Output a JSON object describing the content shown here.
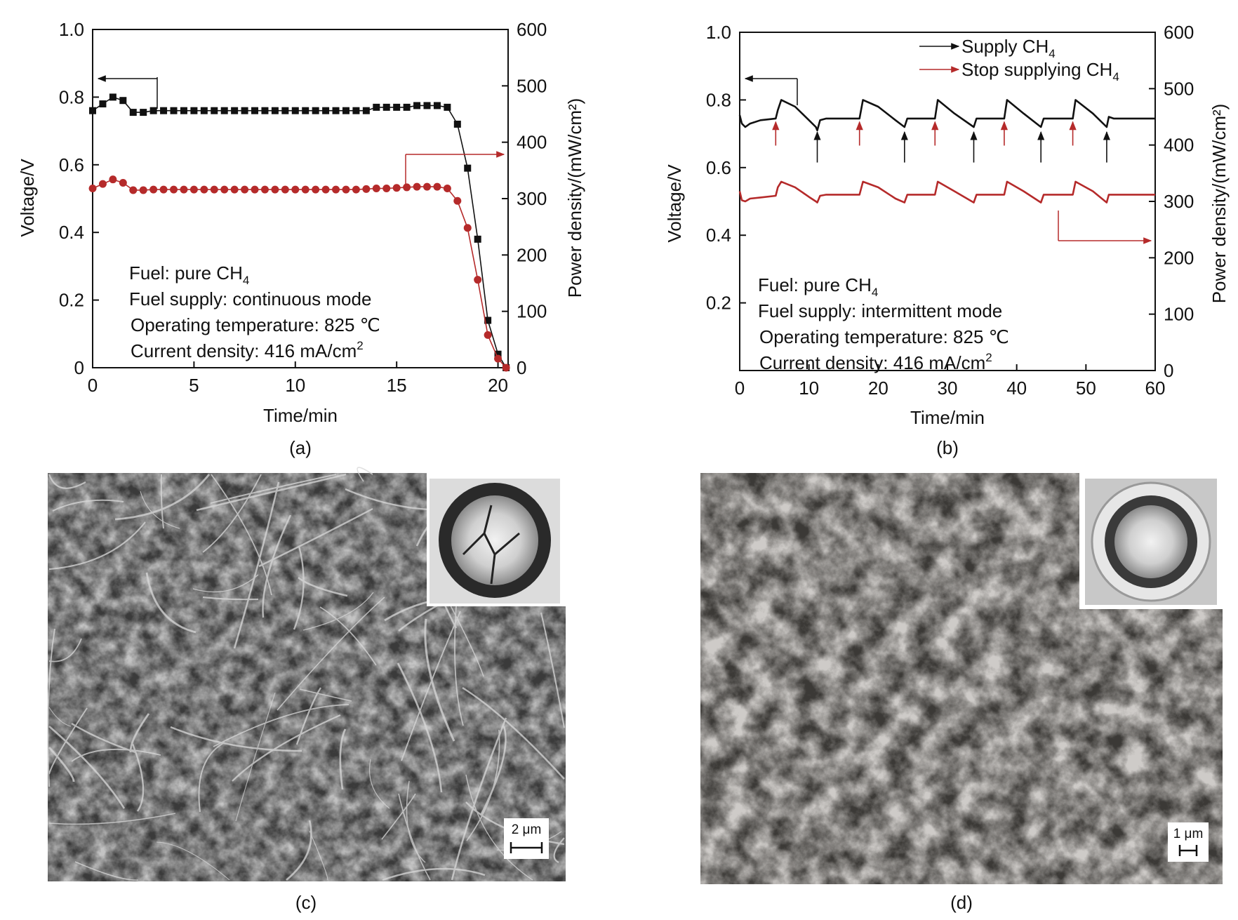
{
  "colors": {
    "voltage": "#111111",
    "power": "#b52a2a",
    "axis": "#111111"
  },
  "panel_labels": [
    "(a)",
    "(b)",
    "(c)",
    "(d)"
  ],
  "chart_data": [
    {
      "type": "line",
      "panel": "a",
      "xlabel": "Time/min",
      "ylabel": "Voltage/V",
      "y2label": "Power density/(mW/cm²)",
      "xlim": [
        0,
        20.5
      ],
      "ylim": [
        0,
        1.0
      ],
      "y2lim": [
        0,
        600
      ],
      "xticks": [
        "0",
        "5",
        "10",
        "15",
        "20"
      ],
      "xtick_values": [
        0,
        5,
        10,
        15,
        20
      ],
      "yticks": [
        "0",
        "0.2",
        "0.4",
        "0.6",
        "0.8",
        "1.0"
      ],
      "ytick_values": [
        0,
        0.2,
        0.4,
        0.6,
        0.8,
        1.0
      ],
      "y2ticks": [
        "0",
        "100",
        "200",
        "300",
        "400",
        "500",
        "600"
      ],
      "y2tick_values": [
        0,
        100,
        200,
        300,
        400,
        500,
        600
      ],
      "annotation_lines": [
        {
          "prefix": "Fuel: pure CH",
          "sub": "4",
          "sup": "",
          "suffix": ""
        },
        {
          "prefix": "Fuel supply: continuous mode",
          "sub": "",
          "sup": "",
          "suffix": ""
        },
        {
          "prefix": "Operating temperature: 825 ℃",
          "sub": "",
          "sup": "",
          "suffix": ""
        },
        {
          "prefix": "Current density: 416 mA/cm",
          "sub": "",
          "sup": "2",
          "suffix": ""
        }
      ],
      "series": [
        {
          "name": "Voltage",
          "axis": "left",
          "marker": "square",
          "x": [
            0,
            0.5,
            1.0,
            1.5,
            2.0,
            2.5,
            3.0,
            3.5,
            4.0,
            4.5,
            5.0,
            5.5,
            6.0,
            6.5,
            7.0,
            7.5,
            8.0,
            8.5,
            9.0,
            9.5,
            10.0,
            10.5,
            11.0,
            11.5,
            12.0,
            12.5,
            13.0,
            13.5,
            14.0,
            14.5,
            15.0,
            15.5,
            16.0,
            16.5,
            17.0,
            17.5,
            18.0,
            18.5,
            19.0,
            19.5,
            20.0,
            20.4
          ],
          "values": [
            0.76,
            0.78,
            0.8,
            0.79,
            0.755,
            0.755,
            0.76,
            0.76,
            0.76,
            0.76,
            0.76,
            0.76,
            0.76,
            0.76,
            0.76,
            0.76,
            0.76,
            0.76,
            0.76,
            0.76,
            0.76,
            0.76,
            0.76,
            0.76,
            0.76,
            0.76,
            0.76,
            0.76,
            0.77,
            0.77,
            0.77,
            0.77,
            0.775,
            0.775,
            0.775,
            0.77,
            0.72,
            0.59,
            0.38,
            0.14,
            0.04,
            0.0
          ]
        },
        {
          "name": "Power density",
          "axis": "right",
          "marker": "circle",
          "x": [
            0,
            0.5,
            1.0,
            1.5,
            2.0,
            2.5,
            3.0,
            3.5,
            4.0,
            4.5,
            5.0,
            5.5,
            6.0,
            6.5,
            7.0,
            7.5,
            8.0,
            8.5,
            9.0,
            9.5,
            10.0,
            10.5,
            11.0,
            11.5,
            12.0,
            12.5,
            13.0,
            13.5,
            14.0,
            14.5,
            15.0,
            15.5,
            16.0,
            16.5,
            17.0,
            17.5,
            18.0,
            18.5,
            19.0,
            19.5,
            20.0,
            20.4
          ],
          "values": [
            318,
            326,
            334,
            328,
            315,
            315,
            316,
            316,
            316,
            316,
            316,
            316,
            316,
            316,
            316,
            316,
            316,
            316,
            316,
            316,
            316,
            316,
            316,
            316,
            316,
            316,
            316,
            317,
            318,
            318,
            319,
            320,
            321,
            321,
            321,
            318,
            296,
            248,
            156,
            58,
            16,
            0
          ]
        }
      ]
    },
    {
      "type": "line",
      "panel": "b",
      "xlabel": "Time/min",
      "ylabel": "Voltage/V",
      "y2label": "Power density/(mW/cm²)",
      "xlim": [
        0,
        60
      ],
      "ylim": [
        0,
        1.0
      ],
      "y2lim": [
        0,
        600
      ],
      "xticks": [
        "0",
        "10",
        "20",
        "30",
        "40",
        "50",
        "60"
      ],
      "xtick_values": [
        0,
        10,
        20,
        30,
        40,
        50,
        60
      ],
      "yticks": [
        "0.2",
        "0.4",
        "0.6",
        "0.8",
        "1.0"
      ],
      "ytick_values": [
        0.2,
        0.4,
        0.6,
        0.8,
        1.0
      ],
      "y2ticks": [
        "0",
        "100",
        "200",
        "300",
        "400",
        "500",
        "600"
      ],
      "y2tick_values": [
        0,
        100,
        200,
        300,
        400,
        500,
        600
      ],
      "legend": [
        {
          "prefix": "Supply CH",
          "sub": "4",
          "color": "#111111"
        },
        {
          "prefix": "Stop supplying CH",
          "sub": "4",
          "color": "#b52a2a"
        }
      ],
      "supply_times": [
        11.2,
        23.8,
        33.8,
        43.5,
        53.0
      ],
      "stop_times": [
        5.2,
        17.3,
        28.2,
        38.2,
        48.1
      ],
      "annotation_lines": [
        {
          "prefix": "Fuel: pure CH",
          "sub": "4",
          "sup": "",
          "suffix": ""
        },
        {
          "prefix": "Fuel supply: intermittent mode",
          "sub": "",
          "sup": "",
          "suffix": ""
        },
        {
          "prefix": "Operating temperature: 825 ℃",
          "sub": "",
          "sup": "",
          "suffix": ""
        },
        {
          "prefix": "Current density: 416 mA/cm",
          "sub": "",
          "sup": "2",
          "suffix": ""
        }
      ],
      "series": [
        {
          "name": "Voltage",
          "axis": "left",
          "x": [
            0,
            0.3,
            0.8,
            1.5,
            3.0,
            5.2,
            5.5,
            6.0,
            8.0,
            10.0,
            11.0,
            11.2,
            11.6,
            12.5,
            17.3,
            17.8,
            20.0,
            22.5,
            23.8,
            24.2,
            25.0,
            28.2,
            28.6,
            31.0,
            33.8,
            34.2,
            35.0,
            38.2,
            38.6,
            41.0,
            43.5,
            43.9,
            44.5,
            48.1,
            48.5,
            51.0,
            53.0,
            53.3,
            54.0,
            60.0
          ],
          "values": [
            0.755,
            0.73,
            0.72,
            0.73,
            0.74,
            0.745,
            0.77,
            0.8,
            0.78,
            0.74,
            0.72,
            0.71,
            0.74,
            0.745,
            0.745,
            0.8,
            0.78,
            0.74,
            0.72,
            0.745,
            0.745,
            0.745,
            0.8,
            0.76,
            0.72,
            0.745,
            0.745,
            0.745,
            0.8,
            0.76,
            0.72,
            0.745,
            0.745,
            0.745,
            0.8,
            0.76,
            0.72,
            0.75,
            0.745,
            0.745
          ]
        },
        {
          "name": "Power density",
          "axis": "right",
          "x": [
            0,
            0.3,
            0.8,
            1.5,
            3.0,
            5.2,
            5.5,
            6.0,
            8.0,
            10.0,
            11.0,
            11.2,
            11.6,
            12.5,
            17.3,
            17.8,
            20.0,
            22.5,
            23.8,
            24.2,
            25.0,
            28.2,
            28.6,
            31.0,
            33.8,
            34.2,
            35.0,
            38.2,
            38.6,
            41.0,
            43.5,
            43.9,
            44.5,
            48.1,
            48.5,
            51.0,
            53.0,
            53.3,
            54.0,
            60.0
          ],
          "values": [
            318,
            302,
            300,
            305,
            307,
            310,
            325,
            335,
            325,
            308,
            300,
            298,
            310,
            312,
            312,
            335,
            325,
            305,
            298,
            312,
            312,
            312,
            335,
            318,
            298,
            312,
            312,
            312,
            335,
            318,
            298,
            312,
            312,
            312,
            335,
            318,
            298,
            312,
            312,
            312
          ]
        }
      ]
    }
  ],
  "sem_panels": [
    {
      "panel": "c",
      "scale_bar": "2 μm"
    },
    {
      "panel": "d",
      "scale_bar": "1 μm"
    }
  ]
}
